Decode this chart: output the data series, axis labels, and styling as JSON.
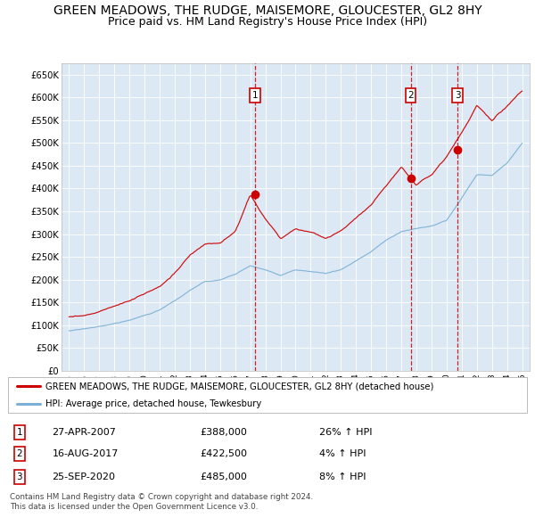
{
  "title": "GREEN MEADOWS, THE RUDGE, MAISEMORE, GLOUCESTER, GL2 8HY",
  "subtitle": "Price paid vs. HM Land Registry's House Price Index (HPI)",
  "title_fontsize": 10,
  "subtitle_fontsize": 9,
  "bg_color": "#dce9f5",
  "plot_bg_color": "#dce9f5",
  "legend_label_red": "GREEN MEADOWS, THE RUDGE, MAISEMORE, GLOUCESTER, GL2 8HY (detached house)",
  "legend_label_blue": "HPI: Average price, detached house, Tewkesbury",
  "footer": "Contains HM Land Registry data © Crown copyright and database right 2024.\nThis data is licensed under the Open Government Licence v3.0.",
  "sale_labels": [
    "1",
    "2",
    "3"
  ],
  "sale_dates": [
    2007.32,
    2017.62,
    2020.73
  ],
  "sale_prices": [
    388000,
    422500,
    485000
  ],
  "sale_info": [
    [
      "1",
      "27-APR-2007",
      "£388,000",
      "26% ↑ HPI"
    ],
    [
      "2",
      "16-AUG-2017",
      "£422,500",
      "4% ↑ HPI"
    ],
    [
      "3",
      "25-SEP-2020",
      "£485,000",
      "8% ↑ HPI"
    ]
  ],
  "ylim": [
    0,
    675000
  ],
  "xlim": [
    1994.5,
    2025.5
  ],
  "yticks": [
    0,
    50000,
    100000,
    150000,
    200000,
    250000,
    300000,
    350000,
    400000,
    450000,
    500000,
    550000,
    600000,
    650000
  ],
  "ytick_labels": [
    "£0",
    "£50K",
    "£100K",
    "£150K",
    "£200K",
    "£250K",
    "£300K",
    "£350K",
    "£400K",
    "£450K",
    "£500K",
    "£550K",
    "£600K",
    "£650K"
  ],
  "xticks": [
    1995,
    1996,
    1997,
    1998,
    1999,
    2000,
    2001,
    2002,
    2003,
    2004,
    2005,
    2006,
    2007,
    2008,
    2009,
    2010,
    2011,
    2012,
    2013,
    2014,
    2015,
    2016,
    2017,
    2018,
    2019,
    2020,
    2021,
    2022,
    2023,
    2024,
    2025
  ],
  "red_color": "#cc0000",
  "blue_color": "#7ab0d4",
  "dashed_color": "#cc0000",
  "hpi_base": {
    "1995": 88000,
    "1996": 91000,
    "1997": 97000,
    "1998": 103000,
    "1999": 110000,
    "2000": 121000,
    "2001": 133000,
    "2002": 152000,
    "2003": 174000,
    "2004": 192000,
    "2005": 196000,
    "2006": 208000,
    "2007": 228000,
    "2008": 218000,
    "2009": 205000,
    "2010": 218000,
    "2011": 215000,
    "2012": 210000,
    "2013": 218000,
    "2014": 237000,
    "2015": 257000,
    "2016": 282000,
    "2017": 302000,
    "2018": 308000,
    "2019": 316000,
    "2020": 330000,
    "2021": 378000,
    "2022": 430000,
    "2023": 428000,
    "2024": 455000,
    "2025": 500000
  },
  "red_base": {
    "1995": 118000,
    "1996": 122000,
    "1997": 130000,
    "1998": 140000,
    "1999": 152000,
    "2000": 166000,
    "2001": 183000,
    "2002": 212000,
    "2003": 248000,
    "2004": 273000,
    "2005": 275000,
    "2006": 298000,
    "2007": 380000,
    "2008": 328000,
    "2009": 285000,
    "2010": 305000,
    "2011": 295000,
    "2012": 282000,
    "2013": 298000,
    "2014": 325000,
    "2015": 355000,
    "2016": 395000,
    "2017": 435000,
    "2018": 395000,
    "2019": 415000,
    "2020": 455000,
    "2021": 510000,
    "2022": 570000,
    "2023": 535000,
    "2024": 565000,
    "2025": 600000
  }
}
